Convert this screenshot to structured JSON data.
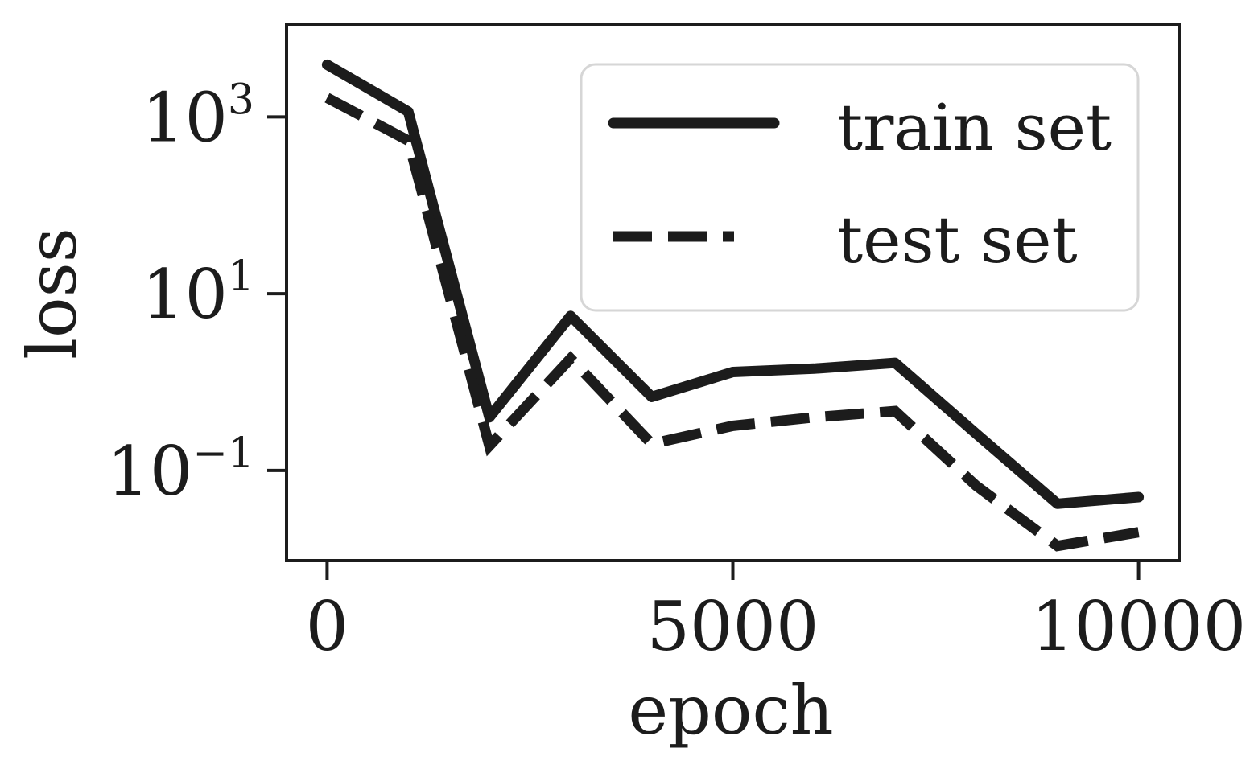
{
  "chart_data": {
    "type": "line",
    "xlabel": "epoch",
    "ylabel": "loss",
    "xlim": [
      -500,
      10500
    ],
    "ylim_log10": [
      -2.02,
      4.05
    ],
    "yscale": "log",
    "grid": false,
    "legend_position": "top-right",
    "x_ticks": [
      {
        "value": 0,
        "label": "0"
      },
      {
        "value": 5000,
        "label": "5000"
      },
      {
        "value": 10000,
        "label": "10000"
      }
    ],
    "y_ticks": [
      {
        "value": 1000,
        "base": "10",
        "exp": "3"
      },
      {
        "value": 10,
        "base": "10",
        "exp": "1"
      },
      {
        "value": 0.1,
        "base": "10",
        "exp": "−1"
      }
    ],
    "series": [
      {
        "name": "train set",
        "style": "solid",
        "color": "#1c1c1c",
        "x": [
          0,
          1000,
          2000,
          3000,
          4000,
          5000,
          6000,
          7000,
          8000,
          9000,
          10000
        ],
        "y": [
          3900,
          1150,
          0.4,
          5.6,
          0.68,
          1.3,
          1.42,
          1.65,
          0.26,
          0.042,
          0.05
        ]
      },
      {
        "name": "test set",
        "style": "dashed",
        "color": "#1c1c1c",
        "x": [
          0,
          1000,
          2000,
          3000,
          4000,
          5000,
          6000,
          7000,
          8000,
          9000,
          10000
        ],
        "y": [
          1650,
          540,
          0.19,
          1.85,
          0.2,
          0.32,
          0.4,
          0.47,
          0.067,
          0.014,
          0.02
        ]
      }
    ]
  }
}
